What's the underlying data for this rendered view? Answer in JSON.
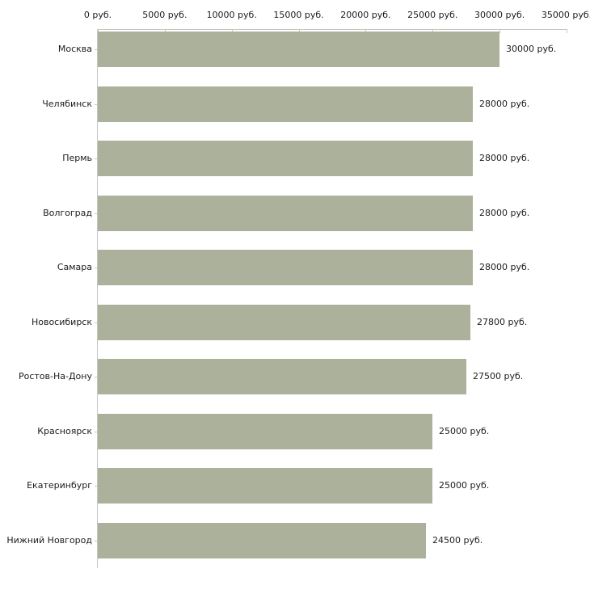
{
  "chart_data": {
    "type": "bar",
    "orientation": "horizontal",
    "title": "",
    "xlabel": "",
    "ylabel": "",
    "categories": [
      "Москва",
      "Челябинск",
      "Пермь",
      "Волгоград",
      "Самара",
      "Новосибирск",
      "Ростов-На-Дону",
      "Красноярск",
      "Екатеринбург",
      "Нижний Новгород"
    ],
    "values": [
      30000,
      28000,
      28000,
      28000,
      28000,
      27800,
      27500,
      25000,
      25000,
      24500
    ],
    "value_labels": [
      "30000 руб.",
      "28000 руб.",
      "28000 руб.",
      "28000 руб.",
      "28000 руб.",
      "27800 руб.",
      "27500 руб.",
      "25000 руб.",
      "25000 руб.",
      "24500 руб."
    ],
    "x_ticks": [
      0,
      5000,
      10000,
      15000,
      20000,
      25000,
      30000,
      35000
    ],
    "x_tick_labels": [
      "0 руб.",
      "5000 руб.",
      "10000 руб.",
      "15000 руб.",
      "20000 руб.",
      "25000 руб.",
      "30000 руб.",
      "35000 руб."
    ],
    "xlim": [
      0,
      35000
    ],
    "grid": false,
    "legend": null,
    "colors": {
      "bar_fill": "#acb19b",
      "axis_line": "#c6c6c6",
      "tick_mark": "#cccc99",
      "text": "#1c1c1c",
      "background": "#ffffff"
    }
  }
}
